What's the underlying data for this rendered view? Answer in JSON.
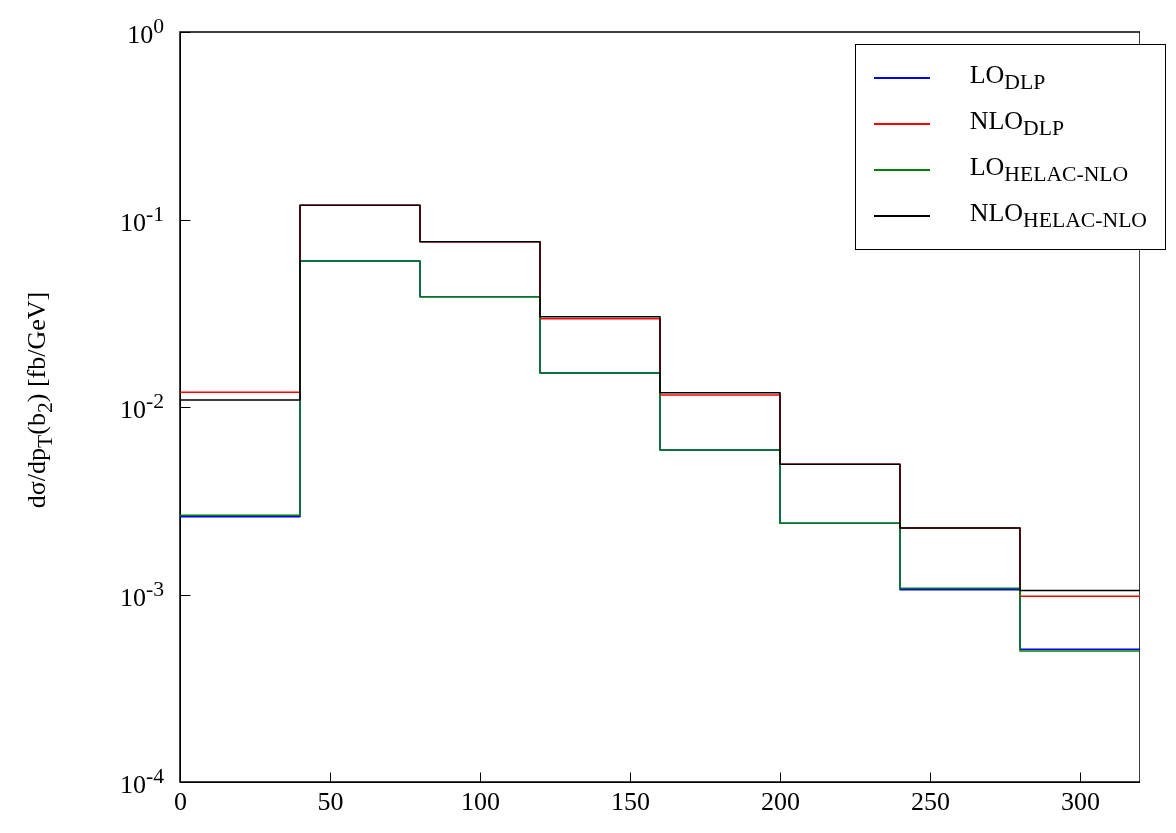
{
  "chart_data": {
    "type": "histogram",
    "ylabel": "dσ/dp$_{T}$(b$_{2}$) [fb/GeV]",
    "bins": [
      0,
      40,
      80,
      120,
      160,
      200,
      240,
      280,
      320
    ],
    "series": [
      {
        "name": "LO$_{DLP}$",
        "color": "#0000ff",
        "values": [
          0.0026,
          0.06,
          0.0387,
          0.0152,
          0.0059,
          0.0024,
          0.00106,
          0.00051
        ]
      },
      {
        "name": "NLO$_{DLP}$",
        "color": "#ff0000",
        "values": [
          0.012,
          0.119,
          0.076,
          0.0296,
          0.0116,
          0.00495,
          0.00226,
          0.00098
        ]
      },
      {
        "name": "LO$_{HELAC-NLO}$",
        "color": "#008000",
        "values": [
          0.00265,
          0.06,
          0.0387,
          0.0152,
          0.0059,
          0.0024,
          0.00108,
          0.0005
        ]
      },
      {
        "name": "NLO$_{HELAC-NLO}$",
        "color": "#000000",
        "values": [
          0.0109,
          0.119,
          0.076,
          0.0303,
          0.0119,
          0.00495,
          0.00226,
          0.00105
        ]
      }
    ],
    "xlim": [
      0,
      320
    ],
    "xticks": [
      0,
      50,
      100,
      150,
      200,
      250,
      300
    ],
    "ylim": [
      0.0001,
      1
    ],
    "yticks": [
      {
        "value": 0.0001,
        "label": "10$^{-4}$"
      },
      {
        "value": 0.001,
        "label": "10$^{-3}$"
      },
      {
        "value": 0.01,
        "label": "10$^{-2}$"
      },
      {
        "value": 0.1,
        "label": "10$^{-1}$"
      },
      {
        "value": 1,
        "label": "10$^{0}$"
      }
    ],
    "log": true,
    "grid": false,
    "legend": "top right"
  }
}
